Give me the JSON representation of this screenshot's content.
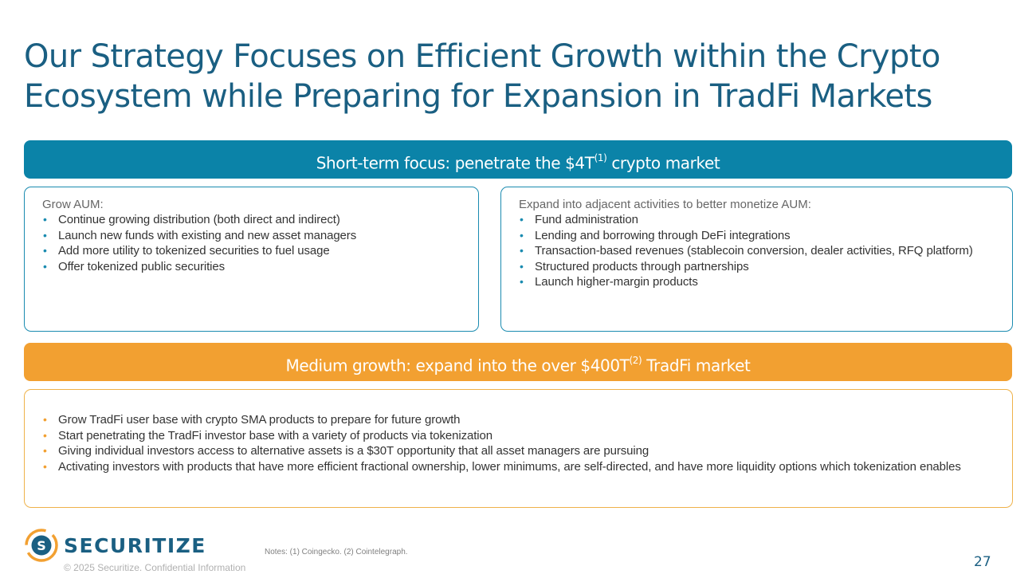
{
  "title": {
    "line1": "Our Strategy Focuses on Efficient Growth within the Crypto",
    "line2": "Ecosystem while Preparing for Expansion in TradFi Markets"
  },
  "short_term": {
    "banner_pre": "Short-term focus: penetrate the $4T",
    "banner_sup": "(1)",
    "banner_post": " crypto market",
    "left_box": {
      "heading": "Grow AUM:",
      "bullets": [
        "Continue growing distribution (both direct and indirect)",
        "Launch new funds with existing and new asset managers",
        "Add more utility to tokenized securities to fuel usage",
        "Offer tokenized public securities"
      ]
    },
    "right_box": {
      "heading": "Expand into adjacent activities to better monetize AUM:",
      "bullets": [
        "Fund administration",
        "Lending and borrowing through DeFi integrations",
        "Transaction-based revenues (stablecoin conversion, dealer activities, RFQ platform)",
        "Structured products through partnerships",
        "Launch higher-margin products"
      ]
    }
  },
  "medium_term": {
    "banner_pre": "Medium growth: expand into the over $400T",
    "banner_sup": "(2)",
    "banner_post": " TradFi market",
    "bullets": [
      "Grow TradFi user base with crypto SMA products to prepare for future growth",
      "Start penetrating the TradFi investor base with a variety of products via tokenization",
      "Giving individual investors access to alternative assets is a $30T opportunity that all asset managers are pursuing",
      "Activating investors with products that have more efficient fractional ownership, lower minimums, are self-directed, and have more liquidity options which tokenization enables"
    ]
  },
  "footer": {
    "logo_text": "SECURITIZE",
    "logo_letter": "S",
    "copyright": "© 2025 Securitize. Confidential Information",
    "notes": "Notes: (1) Coingecko. (2) Cointelegraph.",
    "page_number": "27"
  },
  "colors": {
    "title": "#1a5f82",
    "blue_banner": "#0b83a8",
    "orange_banner": "#f2a031",
    "blue_border": "#1a8bb0",
    "orange_border": "#efb24a",
    "bullet_blue": "#1a8bb0",
    "bullet_orange": "#f2a031"
  }
}
